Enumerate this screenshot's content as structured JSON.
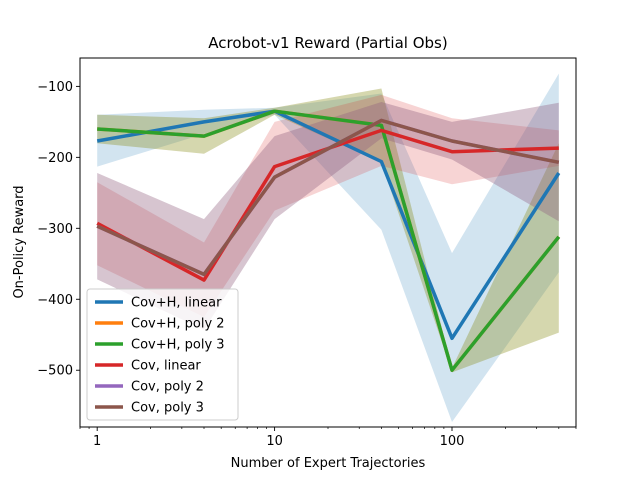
{
  "chart_data": {
    "type": "line",
    "title": "Acrobot-v1 Reward (Partial Obs)",
    "xlabel": "Number of Expert Trajectories",
    "ylabel": "On-Policy Reward",
    "xscale": "log",
    "xlim": [
      0.8,
      500
    ],
    "ylim": [
      -580,
      -60
    ],
    "x": [
      1,
      4,
      10,
      40,
      100,
      400
    ],
    "x_tick_labels": [
      {
        "value": 1,
        "label": "1"
      },
      {
        "value": 10,
        "label": "10"
      },
      {
        "value": 100,
        "label": "100"
      }
    ],
    "y_ticks": [
      {
        "value": -100,
        "label": "−100"
      },
      {
        "value": -200,
        "label": "−200"
      },
      {
        "value": -300,
        "label": "−300"
      },
      {
        "value": -400,
        "label": "−400"
      },
      {
        "value": -500,
        "label": "−500"
      }
    ],
    "grid": false,
    "legend_position": "lower-left",
    "series": [
      {
        "name": "Cov+H, linear",
        "color": "#1f77b4",
        "values": [
          -177,
          -150,
          -135,
          -206,
          -455,
          -222
        ],
        "upper": [
          -140,
          -133,
          -130,
          -110,
          -335,
          -82
        ],
        "lower": [
          -213,
          -167,
          -140,
          -302,
          -573,
          -362
        ]
      },
      {
        "name": "Cov+H, poly 2",
        "color": "#ff7f0e",
        "values": [
          -160,
          -170,
          -135,
          -155,
          -500,
          -312
        ],
        "upper": [
          -140,
          -145,
          -130,
          -103,
          -497,
          -180
        ],
        "lower": [
          -180,
          -195,
          -140,
          -207,
          -503,
          -447
        ]
      },
      {
        "name": "Cov+H, poly 3",
        "color": "#2ca02c",
        "values": [
          -160,
          -170,
          -135,
          -155,
          -500,
          -312
        ],
        "upper": [
          -140,
          -145,
          -130,
          -103,
          -497,
          -180
        ],
        "lower": [
          -180,
          -195,
          -140,
          -207,
          -503,
          -447
        ]
      },
      {
        "name": "Cov, linear",
        "color": "#d62728",
        "values": [
          -293,
          -373,
          -213,
          -162,
          -192,
          -187
        ],
        "upper": [
          -235,
          -320,
          -150,
          -112,
          -145,
          -162
        ],
        "lower": [
          -352,
          -425,
          -275,
          -212,
          -238,
          -212
        ]
      },
      {
        "name": "Cov, poly 2",
        "color": "#9467bd",
        "values": [
          -297,
          -365,
          -228,
          -148,
          -177,
          -207
        ],
        "upper": [
          -222,
          -287,
          -170,
          -122,
          -150,
          -123
        ],
        "lower": [
          -372,
          -443,
          -287,
          -173,
          -203,
          -290
        ]
      },
      {
        "name": "Cov, poly 3",
        "color": "#8c564b",
        "values": [
          -297,
          -365,
          -228,
          -148,
          -177,
          -207
        ],
        "upper": [
          -222,
          -287,
          -170,
          -122,
          -150,
          -123
        ],
        "lower": [
          -372,
          -443,
          -287,
          -173,
          -203,
          -290
        ]
      }
    ]
  }
}
